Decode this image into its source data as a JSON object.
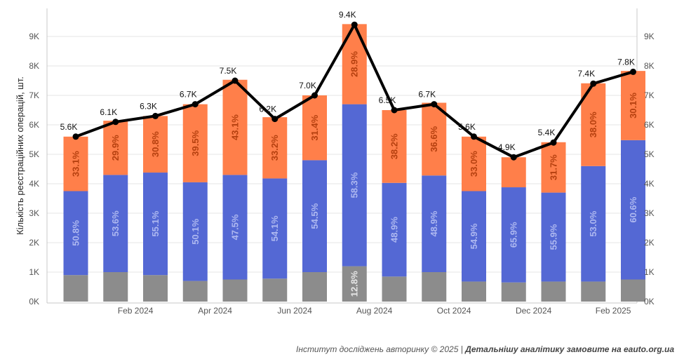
{
  "chart_data": {
    "type": "bar",
    "stacked": true,
    "categories": [
      "Jan 2024",
      "Feb 2024",
      "Mar 2024",
      "Apr 2024",
      "May 2024",
      "Jun 2024",
      "Jul 2024",
      "Aug 2024",
      "Sep 2024",
      "Oct 2024",
      "Nov 2024",
      "Dec 2024",
      "Jan 2025",
      "Feb 2025",
      "Mar 2025"
    ],
    "x_tick_labels": [
      "Feb 2024",
      "Apr 2024",
      "Jun 2024",
      "Aug 2024",
      "Oct 2024",
      "Dec 2024",
      "Feb 2025"
    ],
    "x_tick_categories": [
      1,
      3,
      5,
      7,
      9,
      11,
      13
    ],
    "series": [
      {
        "color": "#8c8c8c",
        "values": [
          900,
          1000,
          900,
          700,
          750,
          780,
          1000,
          1200,
          850,
          1000,
          680,
          650,
          680,
          680,
          750
        ],
        "labels": [
          "",
          "",
          "",
          "",
          "",
          "",
          "",
          "12.8%",
          "",
          "",
          "",
          "",
          "",
          "",
          ""
        ]
      },
      {
        "color": "#5468d4",
        "values": [
          2850,
          3300,
          3480,
          3350,
          3550,
          3400,
          3800,
          5500,
          3180,
          3280,
          3070,
          3230,
          3020,
          3920,
          4730
        ],
        "labels": [
          "50.8%",
          "53.6%",
          "55.1%",
          "50.1%",
          "47.5%",
          "54.1%",
          "54.5%",
          "58.3%",
          "48.9%",
          "48.9%",
          "54.9%",
          "65.9%",
          "55.9%",
          "53.0%",
          "60.6%"
        ]
      },
      {
        "color": "#ff7f4a",
        "values": [
          1850,
          1840,
          1920,
          2650,
          3230,
          2080,
          2200,
          2720,
          2470,
          2470,
          1850,
          1020,
          1710,
          2810,
          2350
        ],
        "labels": [
          "33.1%",
          "29.9%",
          "30.8%",
          "39.5%",
          "43.1%",
          "33.2%",
          "31.4%",
          "28.9%",
          "38.2%",
          "36.6%",
          "33.0%",
          "",
          "31.7%",
          "38.0%",
          "30.1%"
        ]
      }
    ],
    "line": {
      "color": "#000000",
      "values": [
        5600,
        6100,
        6300,
        6700,
        7500,
        6200,
        7000,
        9400,
        6500,
        6700,
        5600,
        4900,
        5400,
        7400,
        7800
      ],
      "labels": [
        "5.6K",
        "6.1K",
        "6.3K",
        "6.7K",
        "7.5K",
        "6.2K",
        "7.0K",
        "9.4K",
        "6.5K",
        "6.7K",
        "5.6K",
        "4.9K",
        "5.4K",
        "7.4K",
        "7.8K"
      ]
    },
    "ylim": [
      0,
      10000
    ],
    "y_ticks": [
      0,
      1000,
      2000,
      3000,
      4000,
      5000,
      6000,
      7000,
      8000,
      9000
    ],
    "y_tick_labels": [
      "0K",
      "1K",
      "2K",
      "3K",
      "4K",
      "5K",
      "6K",
      "7K",
      "8K",
      "9K"
    ],
    "ylabel": "Кількість реєстраційних операцій, шт.",
    "grid": true
  },
  "footer": {
    "source": "Інститут досліджень авторинку © 2025 | ",
    "cta": "Детальнішу аналітику замовите на eauto.org.ua"
  }
}
